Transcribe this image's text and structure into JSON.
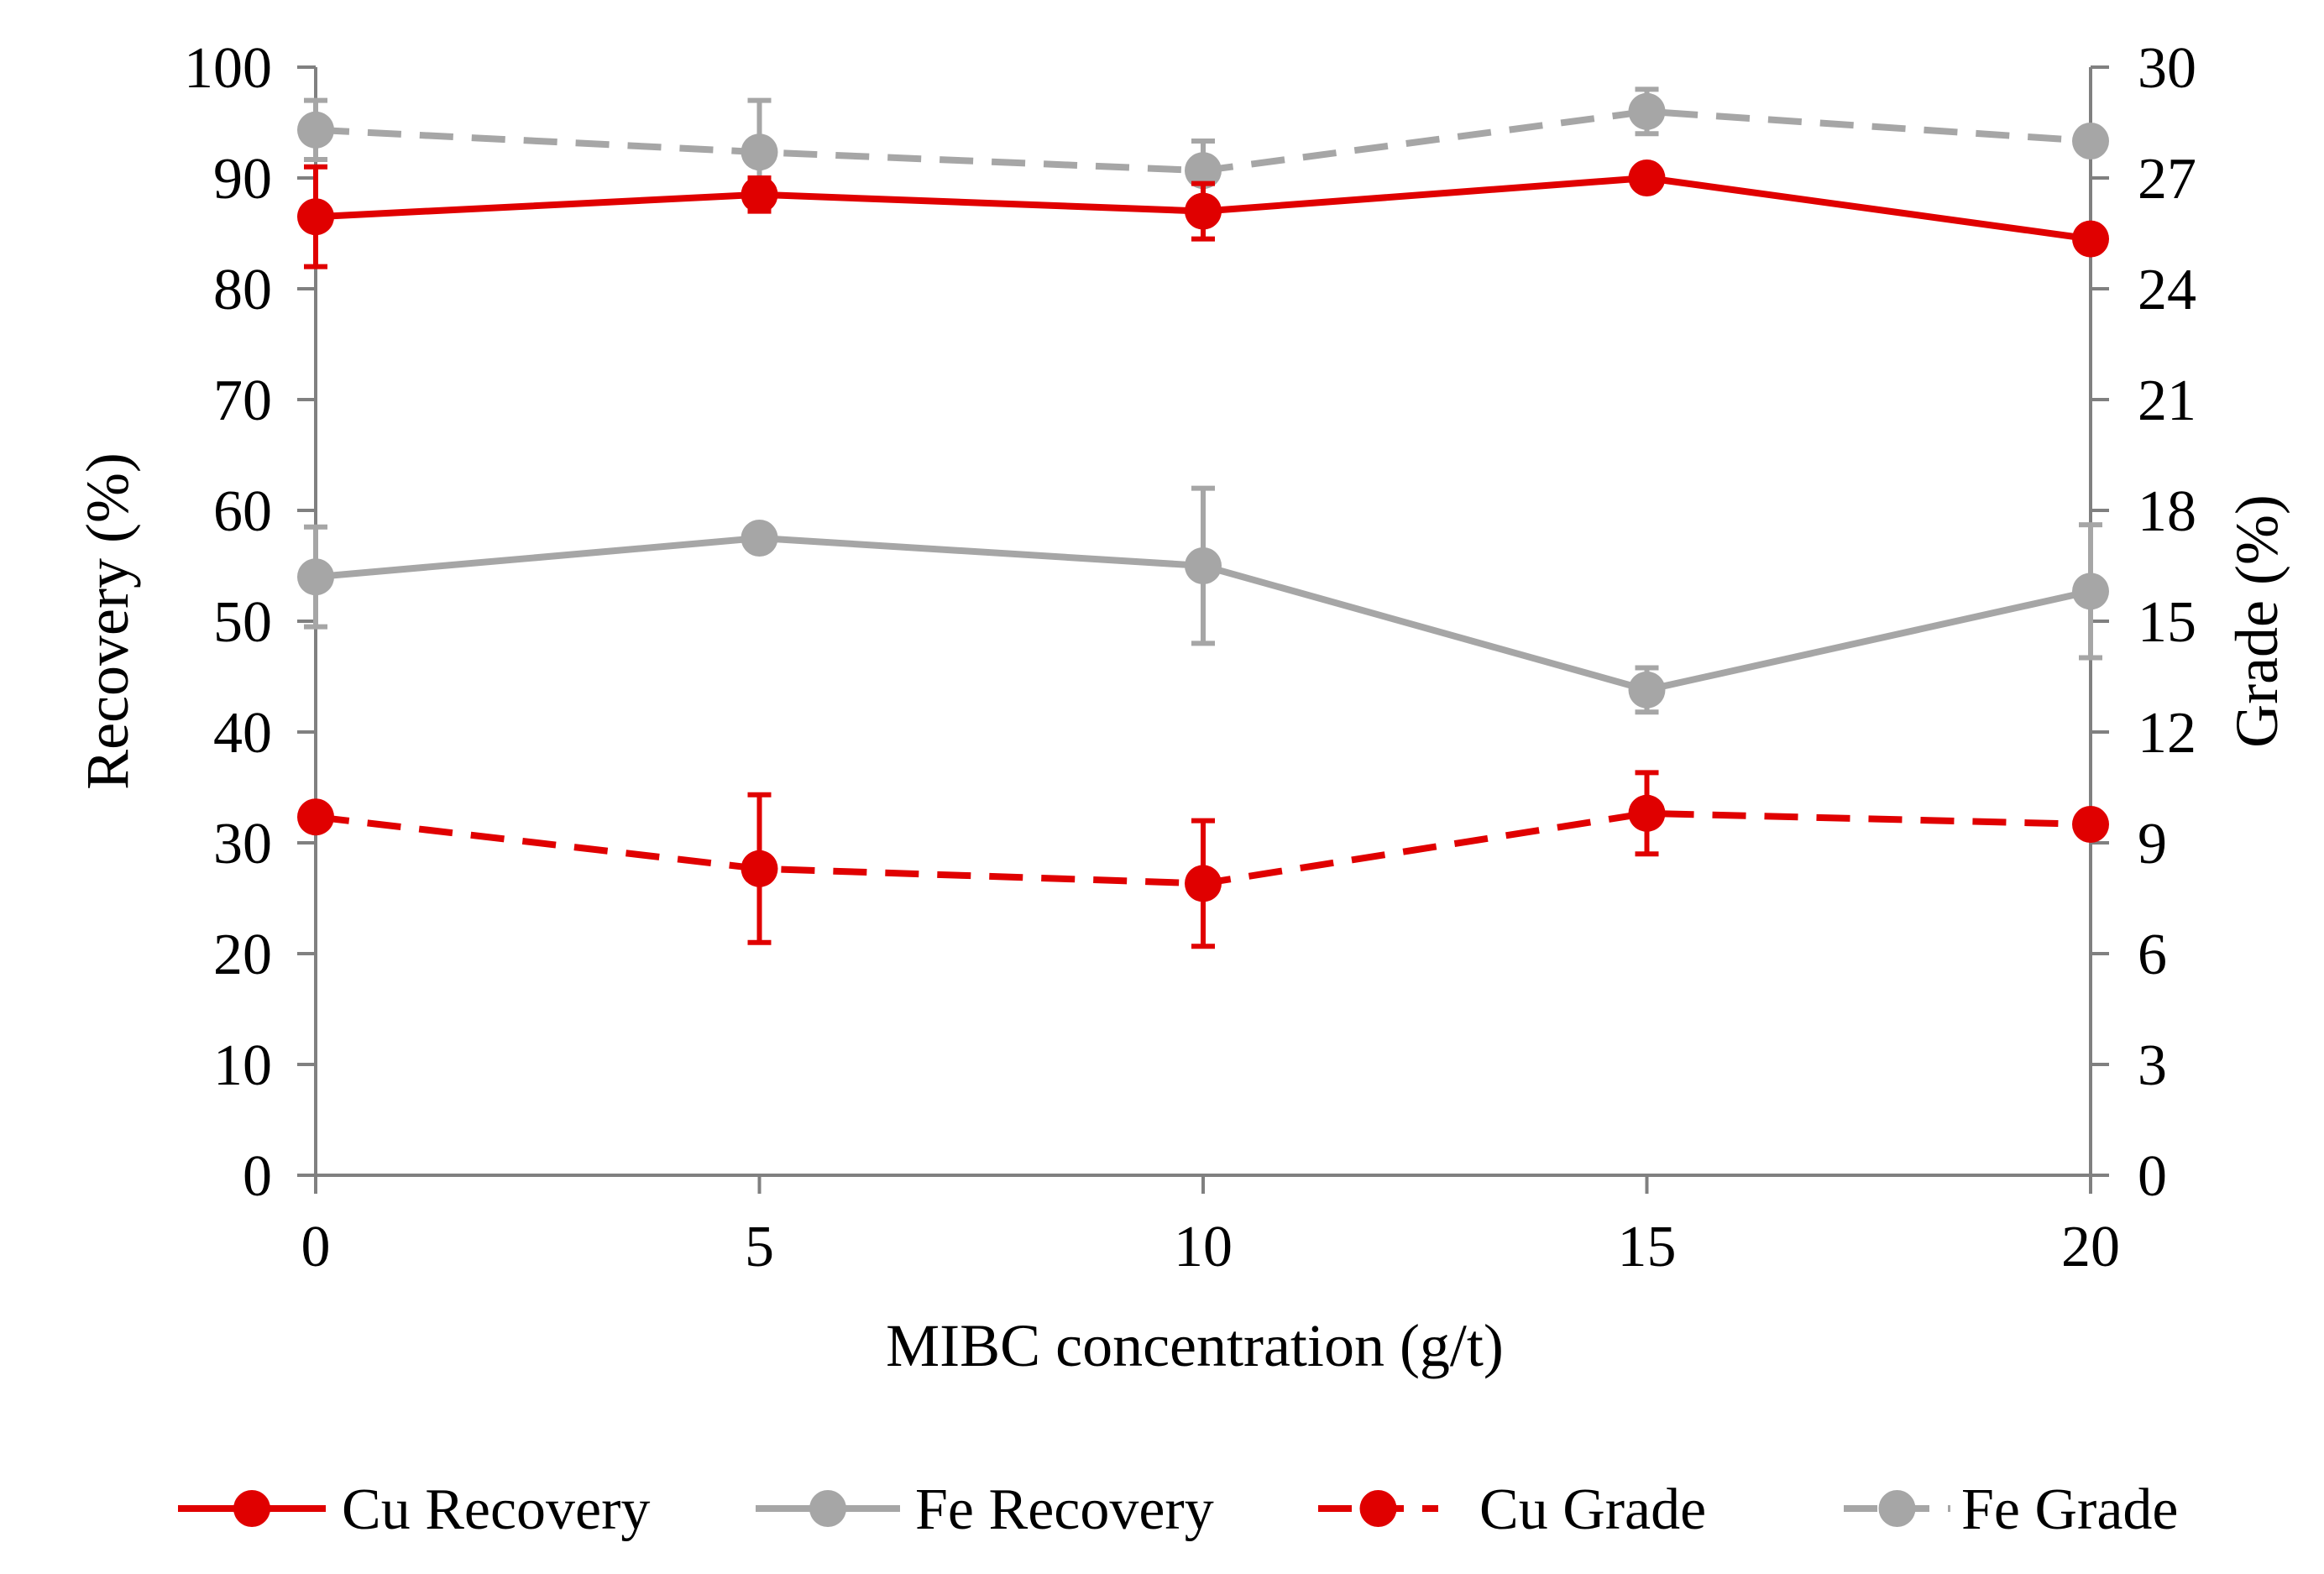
{
  "chart_data": {
    "type": "line",
    "title": "",
    "xlabel": "MIBC concentration (g/t)",
    "ylabel": "Recovery (%)",
    "y2label": "Grade (%)",
    "x": [
      0,
      5,
      10,
      15,
      20
    ],
    "x_ticks": [
      "0",
      "5",
      "10",
      "15",
      "20"
    ],
    "xlim": [
      0,
      20
    ],
    "ylim": [
      0,
      100
    ],
    "y_ticks": [
      "0",
      "10",
      "20",
      "30",
      "40",
      "50",
      "60",
      "70",
      "80",
      "90",
      "100"
    ],
    "y2lim": [
      0,
      30
    ],
    "y2_ticks": [
      "0",
      "3",
      "6",
      "9",
      "12",
      "15",
      "18",
      "21",
      "24",
      "27",
      "30"
    ],
    "grid": false,
    "legend_position": "bottom",
    "series": [
      {
        "name": "Cu Recovery",
        "axis": "left",
        "style": "solid",
        "color": "#e00000",
        "values": [
          86.5,
          88.5,
          87.0,
          90.0,
          84.5
        ],
        "errors": [
          4.5,
          1.5,
          2.5,
          0.8,
          0.8
        ]
      },
      {
        "name": "Fe Recovery",
        "axis": "left",
        "style": "solid",
        "color": "#a6a6a6",
        "values": [
          54.0,
          57.5,
          55.0,
          43.8,
          52.7
        ],
        "errors": [
          4.5,
          0.8,
          7.0,
          2.0,
          6.0
        ]
      },
      {
        "name": "Cu Grade",
        "axis": "right",
        "style": "dashed",
        "color": "#e00000",
        "values": [
          9.7,
          8.3,
          7.9,
          9.8,
          9.5
        ],
        "errors": [
          0.3,
          2.0,
          1.7,
          1.1,
          0.3
        ]
      },
      {
        "name": "Fe Grade",
        "axis": "right",
        "style": "dashed",
        "color": "#a6a6a6",
        "values": [
          28.3,
          27.7,
          27.2,
          28.8,
          28.0
        ],
        "errors": [
          0.8,
          1.4,
          0.8,
          0.6,
          0.3
        ]
      }
    ]
  }
}
